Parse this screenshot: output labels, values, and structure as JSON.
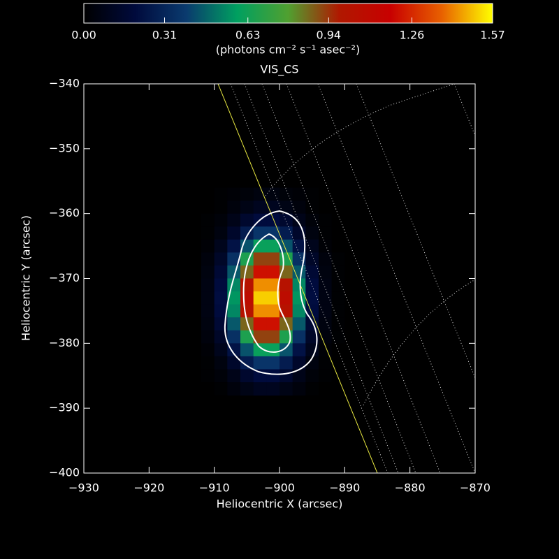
{
  "chart_data": {
    "type": "heatmap",
    "title": "VIS_CS",
    "x_label": "Heliocentric X (arcsec)",
    "y_label": "Heliocentric Y (arcsec)",
    "colorbar_label": "(photons cm⁻² s⁻¹ asec⁻²)",
    "xlim": [
      -930,
      -870
    ],
    "ylim": [
      -340,
      -400
    ],
    "xticks": [
      {
        "value": -930,
        "label": "−930"
      },
      {
        "value": -920,
        "label": "−920"
      },
      {
        "value": -910,
        "label": "−910"
      },
      {
        "value": -900,
        "label": "−900"
      },
      {
        "value": -890,
        "label": "−890"
      },
      {
        "value": -880,
        "label": "−880"
      },
      {
        "value": -870,
        "label": "−870"
      }
    ],
    "yticks": [
      {
        "value": -340,
        "label": "−340"
      },
      {
        "value": -350,
        "label": "−350"
      },
      {
        "value": -360,
        "label": "−360"
      },
      {
        "value": -370,
        "label": "−370"
      },
      {
        "value": -380,
        "label": "−380"
      },
      {
        "value": -390,
        "label": "−390"
      },
      {
        "value": -400,
        "label": "−400"
      }
    ],
    "clim": [
      0,
      1.57
    ],
    "cticks": [
      {
        "value": 0,
        "label": "0.00"
      },
      0.31,
      0.63,
      0.94,
      1.26,
      1.57
    ],
    "colormap": [
      "#000000",
      "#000a3c",
      "#0a3a6e",
      "#00a060",
      "#50a030",
      "#b01800",
      "#c80000",
      "#e86000",
      "#ffff00"
    ],
    "x": [
      -911,
      -909,
      -907,
      -905,
      -903,
      -901,
      -899,
      -897,
      -895,
      -893,
      -891
    ],
    "y": [
      -357,
      -359,
      -361,
      -363,
      -365,
      -367,
      -369,
      -371,
      -373,
      -375,
      -377,
      -379,
      -381,
      -383,
      -385,
      -387
    ],
    "z": [
      [
        0.0,
        0.01,
        0.02,
        0.03,
        0.05,
        0.05,
        0.03,
        0.02,
        0.01,
        0.0,
        0.0
      ],
      [
        0.0,
        0.01,
        0.04,
        0.07,
        0.1,
        0.1,
        0.07,
        0.04,
        0.01,
        0.0,
        0.0
      ],
      [
        0.01,
        0.03,
        0.08,
        0.15,
        0.2,
        0.2,
        0.15,
        0.08,
        0.03,
        0.01,
        0.0
      ],
      [
        0.01,
        0.05,
        0.14,
        0.27,
        0.37,
        0.37,
        0.27,
        0.14,
        0.05,
        0.01,
        0.0
      ],
      [
        0.02,
        0.09,
        0.23,
        0.44,
        0.61,
        0.61,
        0.44,
        0.23,
        0.09,
        0.02,
        0.0
      ],
      [
        0.04,
        0.13,
        0.35,
        0.66,
        0.92,
        0.92,
        0.66,
        0.35,
        0.13,
        0.04,
        0.01
      ],
      [
        0.05,
        0.17,
        0.45,
        0.87,
        1.21,
        1.21,
        0.87,
        0.45,
        0.17,
        0.05,
        0.01
      ],
      [
        0.06,
        0.2,
        0.54,
        1.03,
        1.43,
        1.43,
        1.03,
        0.54,
        0.2,
        0.06,
        0.01
      ],
      [
        0.06,
        0.21,
        0.57,
        1.08,
        1.51,
        1.51,
        1.08,
        0.57,
        0.21,
        0.06,
        0.01
      ],
      [
        0.06,
        0.2,
        0.54,
        1.03,
        1.43,
        1.43,
        1.03,
        0.54,
        0.2,
        0.06,
        0.01
      ],
      [
        0.05,
        0.17,
        0.45,
        0.87,
        1.21,
        1.21,
        0.87,
        0.45,
        0.17,
        0.05,
        0.01
      ],
      [
        0.04,
        0.13,
        0.35,
        0.66,
        0.92,
        0.92,
        0.66,
        0.35,
        0.13,
        0.04,
        0.01
      ],
      [
        0.02,
        0.09,
        0.23,
        0.44,
        0.61,
        0.61,
        0.44,
        0.23,
        0.09,
        0.02,
        0.0
      ],
      [
        0.01,
        0.05,
        0.14,
        0.27,
        0.37,
        0.37,
        0.27,
        0.14,
        0.05,
        0.01,
        0.0
      ],
      [
        0.01,
        0.03,
        0.08,
        0.15,
        0.2,
        0.2,
        0.15,
        0.08,
        0.03,
        0.01,
        0.0
      ],
      [
        0.0,
        0.01,
        0.04,
        0.07,
        0.1,
        0.1,
        0.07,
        0.04,
        0.01,
        0.0,
        0.0
      ]
    ]
  }
}
